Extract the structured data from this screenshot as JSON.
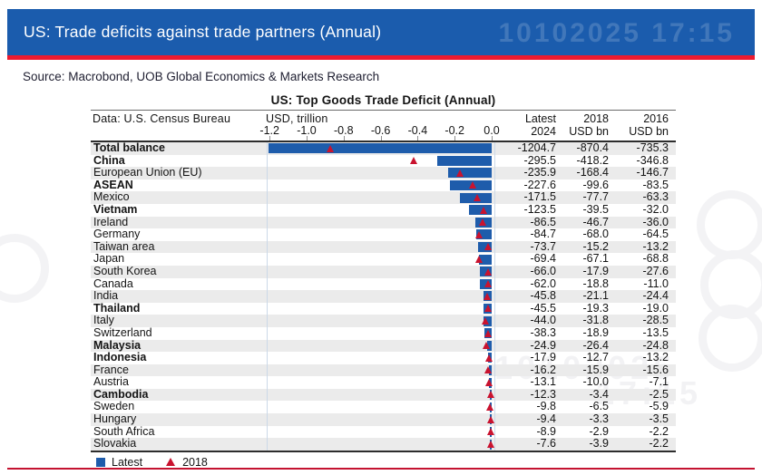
{
  "header": {
    "title": "US: Trade deficits against trade partners (Annual)",
    "watermark": "10102025 17:15"
  },
  "source": "Source: Macrobond, UOB Global Economics & Markets Research",
  "body_watermark": {
    "line1": "10102025",
    "line2": "17:15"
  },
  "colors": {
    "header_blue": "#1b5cad",
    "accent_red": "#ed1b2f",
    "bar_blue": "#1e5cab",
    "triangle_red": "#c9132f",
    "row_stripe": "#ebebeb"
  },
  "chart_data": {
    "type": "bar",
    "orientation": "horizontal",
    "title": "US: Top Goods Trade Deficit (Annual)",
    "data_note": "Data: U.S. Census Bureau",
    "unit_label": "USD, trillion",
    "axis": {
      "ticks": [
        -1.2,
        -1.0,
        -0.8,
        -0.6,
        -0.4,
        -0.2,
        0.0
      ],
      "min": -1.2255,
      "max": 0.0,
      "grid": false
    },
    "columns": [
      {
        "line1": "Latest",
        "line2": "2024"
      },
      {
        "line1": "2018",
        "line2": "USD bn"
      },
      {
        "line1": "2016",
        "line2": "USD bn"
      }
    ],
    "legend": [
      {
        "label": "Latest",
        "marker": "square",
        "color": "#1e5cab"
      },
      {
        "label": "2018",
        "marker": "triangle",
        "color": "#c9132f"
      }
    ],
    "rows": [
      {
        "name": "Total balance",
        "bold": true,
        "latest_2024": -1204.7,
        "v2018": -870.4,
        "v2016": -735.3
      },
      {
        "name": "China",
        "bold": true,
        "latest_2024": -295.5,
        "v2018": -418.2,
        "v2016": -346.8
      },
      {
        "name": "European Union (EU)",
        "bold": false,
        "latest_2024": -235.9,
        "v2018": -168.4,
        "v2016": -146.7
      },
      {
        "name": "ASEAN",
        "bold": true,
        "latest_2024": -227.6,
        "v2018": -99.6,
        "v2016": -83.5
      },
      {
        "name": "Mexico",
        "bold": false,
        "latest_2024": -171.5,
        "v2018": -77.7,
        "v2016": -63.3
      },
      {
        "name": "Vietnam",
        "bold": true,
        "latest_2024": -123.5,
        "v2018": -39.5,
        "v2016": -32.0
      },
      {
        "name": "Ireland",
        "bold": false,
        "latest_2024": -86.5,
        "v2018": -46.7,
        "v2016": -36.0
      },
      {
        "name": "Germany",
        "bold": false,
        "latest_2024": -84.7,
        "v2018": -68.0,
        "v2016": -64.5
      },
      {
        "name": "Taiwan area",
        "bold": false,
        "latest_2024": -73.7,
        "v2018": -15.2,
        "v2016": -13.2
      },
      {
        "name": "Japan",
        "bold": false,
        "latest_2024": -69.4,
        "v2018": -67.1,
        "v2016": -68.8
      },
      {
        "name": "South Korea",
        "bold": false,
        "latest_2024": -66.0,
        "v2018": -17.9,
        "v2016": -27.6
      },
      {
        "name": "Canada",
        "bold": false,
        "latest_2024": -62.0,
        "v2018": -18.8,
        "v2016": -11.0
      },
      {
        "name": "India",
        "bold": false,
        "latest_2024": -45.8,
        "v2018": -21.1,
        "v2016": -24.4
      },
      {
        "name": "Thailand",
        "bold": true,
        "latest_2024": -45.5,
        "v2018": -19.3,
        "v2016": -19.0
      },
      {
        "name": "Italy",
        "bold": false,
        "latest_2024": -44.0,
        "v2018": -31.8,
        "v2016": -28.5
      },
      {
        "name": "Switzerland",
        "bold": false,
        "latest_2024": -38.3,
        "v2018": -18.9,
        "v2016": -13.5
      },
      {
        "name": "Malaysia",
        "bold": true,
        "latest_2024": -24.9,
        "v2018": -26.4,
        "v2016": -24.8
      },
      {
        "name": "Indonesia",
        "bold": true,
        "latest_2024": -17.9,
        "v2018": -12.7,
        "v2016": -13.2
      },
      {
        "name": "France",
        "bold": false,
        "latest_2024": -16.2,
        "v2018": -15.9,
        "v2016": -15.6
      },
      {
        "name": "Austria",
        "bold": false,
        "latest_2024": -13.1,
        "v2018": -10.0,
        "v2016": -7.1
      },
      {
        "name": "Cambodia",
        "bold": true,
        "latest_2024": -12.3,
        "v2018": -3.4,
        "v2016": -2.5
      },
      {
        "name": "Sweden",
        "bold": false,
        "latest_2024": -9.8,
        "v2018": -6.5,
        "v2016": -5.9
      },
      {
        "name": "Hungary",
        "bold": false,
        "latest_2024": -9.4,
        "v2018": -3.3,
        "v2016": -3.5
      },
      {
        "name": "South Africa",
        "bold": false,
        "latest_2024": -8.9,
        "v2018": -2.9,
        "v2016": -2.2
      },
      {
        "name": "Slovakia",
        "bold": false,
        "latest_2024": -7.6,
        "v2018": -3.9,
        "v2016": -2.2
      }
    ]
  }
}
